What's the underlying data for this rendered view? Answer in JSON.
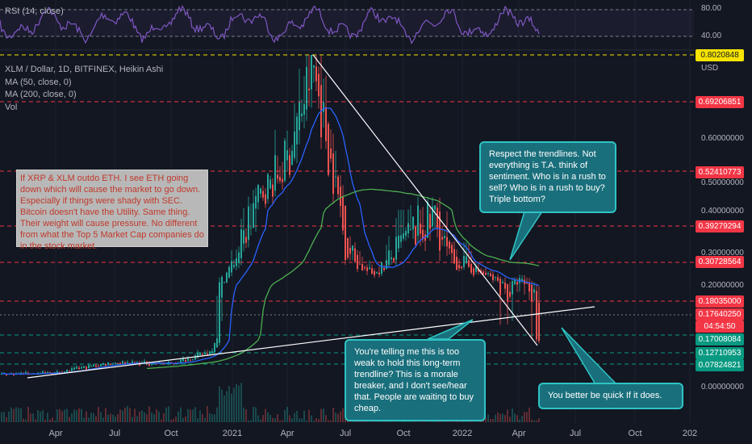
{
  "rsi": {
    "label": "RSI (14, close)",
    "levels": [
      "80.00",
      "40.00"
    ]
  },
  "header": {
    "symbol": "XLM / Dollar, 1D, BITFINEX, Heikin Ashi",
    "indicators": [
      "MA (50, close, 0)",
      "MA (200, close, 0)",
      "Vol"
    ]
  },
  "price_axis": {
    "currency": "USD",
    "top_tag": "0.8020848",
    "ticks": [
      "0.60000000",
      "0.50000000",
      "0.40000000",
      "0.30000000",
      "0.20000000",
      "0.00000000"
    ],
    "tags": [
      {
        "value": "0.69206851",
        "color": "#f23645"
      },
      {
        "value": "0.52410773",
        "color": "#f23645"
      },
      {
        "value": "0.39279294",
        "color": "#f23645"
      },
      {
        "value": "0.30728564",
        "color": "#f23645"
      },
      {
        "value": "0.18035000",
        "color": "#f23645"
      },
      {
        "value": "0.17640250",
        "color": "#f23645"
      },
      {
        "value": "04:54:50",
        "color": "#f23645"
      },
      {
        "value": "0.17008084",
        "color": "#089981"
      },
      {
        "value": "0.12710953",
        "color": "#089981"
      },
      {
        "value": "0.07824821",
        "color": "#089981"
      }
    ]
  },
  "time_axis": [
    "Apr",
    "Jul",
    "Oct",
    "2021",
    "Apr",
    "Jul",
    "Oct",
    "2022",
    "Apr",
    "Jul",
    "Oct",
    "202"
  ],
  "notes": {
    "left_box": "If XRP & XLM outdo ETH.  I see ETH going down which will cause the market to go down.  Especially if things were shady with SEC. Bitcoin doesn't have the Utility.  Same thing.  Their weight will cause pressure.  No different from what the Top 5 Market Cap companies do in the stock market.",
    "callout_top": "Respect the trendlines.  Not everything is T.A. think of sentiment.  Who is in a rush to sell?  Who is in a rush to buy?  Triple bottom?",
    "callout_mid": "You're telling me this is too weak to hold this long-term trendline?  This is a morale breaker, and I don't see/hear that.  People are waiting to buy cheap.",
    "callout_right": "You better be quick If it does."
  },
  "colors": {
    "bg": "#131722",
    "up": "#26a69a",
    "down": "#ef5350",
    "ma50": "#2962ff",
    "ma200": "#4caf50",
    "rsi": "#7e57c2",
    "level_red": "#f23645",
    "level_green": "#089981"
  },
  "chart_data": {
    "type": "candlestick",
    "title": "XLM / Dollar, 1D, BITFINEX, Heikin Ashi",
    "ylabel": "USD",
    "series": [
      {
        "name": "XLM / Dollar",
        "dates": [
          "2020-01",
          "2020-04",
          "2020-07",
          "2020-10",
          "2020-12",
          "2021-01",
          "2021-02",
          "2021-04",
          "2021-05",
          "2021-06",
          "2021-07",
          "2021-09",
          "2021-10",
          "2021-11",
          "2021-12",
          "2022-01",
          "2022-02",
          "2022-03",
          "2022-04",
          "2022-05"
        ],
        "close": [
          0.045,
          0.05,
          0.085,
          0.08,
          0.13,
          0.3,
          0.45,
          0.55,
          0.78,
          0.35,
          0.25,
          0.36,
          0.38,
          0.4,
          0.3,
          0.3,
          0.25,
          0.19,
          0.22,
          0.176
        ]
      },
      {
        "name": "MA (50, close, 0)"
      },
      {
        "name": "MA (200, close, 0)"
      },
      {
        "name": "RSI (14, close)"
      }
    ],
    "levels_red": [
      0.69206851,
      0.52410773,
      0.39279294,
      0.30728564,
      0.18035
    ],
    "levels_green": [
      0.17008084,
      0.12710953,
      0.07824821
    ]
  }
}
